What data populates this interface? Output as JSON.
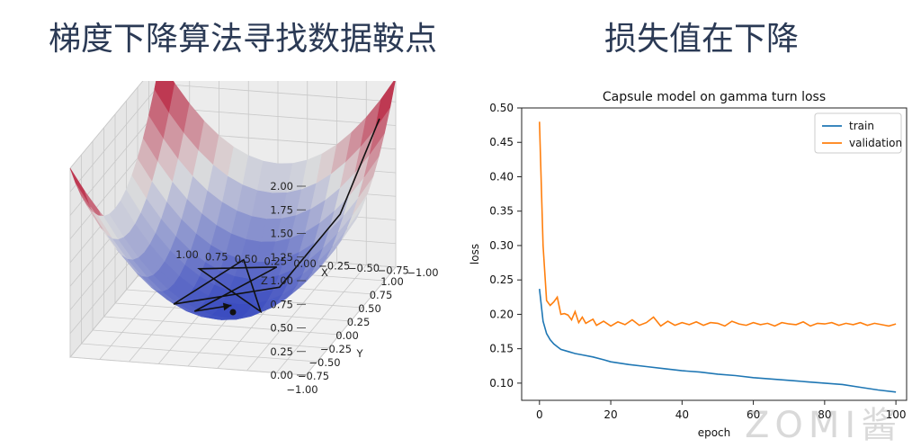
{
  "left_heading": "梯度下降算法寻找数据鞍点",
  "right_heading": "损失值在下降",
  "watermark": "ZOMI酱",
  "chart_data": [
    {
      "type": "surface3d",
      "title": "",
      "xlabel": "X",
      "ylabel": "Y",
      "zlabel": "Z",
      "xlim": [
        -1,
        1
      ],
      "ylim": [
        -1,
        1
      ],
      "zlim": [
        0,
        2
      ],
      "xticks": [
        "−1.00",
        "−0.75",
        "−0.50",
        "−0.25",
        "0.00",
        "0.25",
        "0.50",
        "0.75",
        "1.00"
      ],
      "yticks": [
        "1.00",
        "0.75",
        "0.50",
        "0.25",
        "0.00",
        "−0.25",
        "−0.50",
        "−0.75",
        "−1.00"
      ],
      "zticks": [
        "0.00",
        "0.25",
        "0.50",
        "0.75",
        "1.00",
        "1.25",
        "1.50",
        "1.75",
        "2.00"
      ],
      "surface": "z = x^2 + y^2",
      "colormap": [
        "#3b4cc0",
        "#dddddd",
        "#b40426"
      ],
      "descent_path": [
        [
          -0.9,
          0.9,
          1.62
        ],
        [
          -0.7,
          0.55,
          0.79
        ],
        [
          -0.3,
          0.25,
          0.15
        ],
        [
          0.35,
          -0.4,
          0.28
        ],
        [
          0.1,
          0.5,
          0.26
        ],
        [
          -0.35,
          -0.3,
          0.21
        ],
        [
          0.4,
          0.3,
          0.25
        ],
        [
          -0.2,
          0.45,
          0.24
        ],
        [
          0.25,
          -0.2,
          0.1
        ],
        [
          0.05,
          0.1,
          0.01
        ]
      ],
      "end_point": [
        0,
        0,
        0
      ]
    },
    {
      "type": "line",
      "title": "Capsule model on gamma turn loss",
      "xlabel": "epoch",
      "ylabel": "loss",
      "xlim": [
        -5,
        103
      ],
      "ylim": [
        0.075,
        0.5
      ],
      "xticks": [
        0,
        20,
        40,
        60,
        80,
        100
      ],
      "yticks": [
        0.1,
        0.15,
        0.2,
        0.25,
        0.3,
        0.35,
        0.4,
        0.45,
        0.5
      ],
      "legend_position": "top-right",
      "series": [
        {
          "name": "train",
          "color": "#1f77b4",
          "x": [
            0,
            1,
            2,
            3,
            4,
            5,
            6,
            8,
            10,
            12,
            15,
            18,
            20,
            25,
            30,
            35,
            40,
            45,
            50,
            55,
            60,
            65,
            70,
            75,
            80,
            85,
            90,
            95,
            100
          ],
          "y": [
            0.237,
            0.19,
            0.172,
            0.163,
            0.157,
            0.153,
            0.149,
            0.146,
            0.143,
            0.141,
            0.138,
            0.134,
            0.131,
            0.127,
            0.124,
            0.121,
            0.118,
            0.116,
            0.113,
            0.111,
            0.108,
            0.106,
            0.104,
            0.102,
            0.1,
            0.098,
            0.094,
            0.09,
            0.087
          ]
        },
        {
          "name": "validation",
          "color": "#ff7f0e",
          "x": [
            0,
            1,
            2,
            3,
            4,
            5,
            6,
            7,
            8,
            9,
            10,
            11,
            12,
            13,
            14,
            15,
            16,
            18,
            20,
            22,
            24,
            26,
            28,
            30,
            32,
            34,
            36,
            38,
            40,
            42,
            44,
            46,
            48,
            50,
            52,
            54,
            56,
            58,
            60,
            62,
            64,
            66,
            68,
            70,
            72,
            74,
            76,
            78,
            80,
            82,
            84,
            86,
            88,
            90,
            92,
            94,
            96,
            98,
            100
          ],
          "y": [
            0.48,
            0.3,
            0.22,
            0.213,
            0.218,
            0.225,
            0.2,
            0.201,
            0.199,
            0.192,
            0.204,
            0.188,
            0.196,
            0.187,
            0.19,
            0.193,
            0.184,
            0.19,
            0.183,
            0.189,
            0.185,
            0.192,
            0.184,
            0.188,
            0.196,
            0.183,
            0.19,
            0.184,
            0.188,
            0.185,
            0.189,
            0.184,
            0.188,
            0.187,
            0.183,
            0.19,
            0.186,
            0.184,
            0.188,
            0.185,
            0.187,
            0.183,
            0.188,
            0.186,
            0.185,
            0.189,
            0.183,
            0.187,
            0.186,
            0.188,
            0.184,
            0.187,
            0.185,
            0.188,
            0.184,
            0.187,
            0.185,
            0.183,
            0.186
          ]
        }
      ]
    }
  ]
}
